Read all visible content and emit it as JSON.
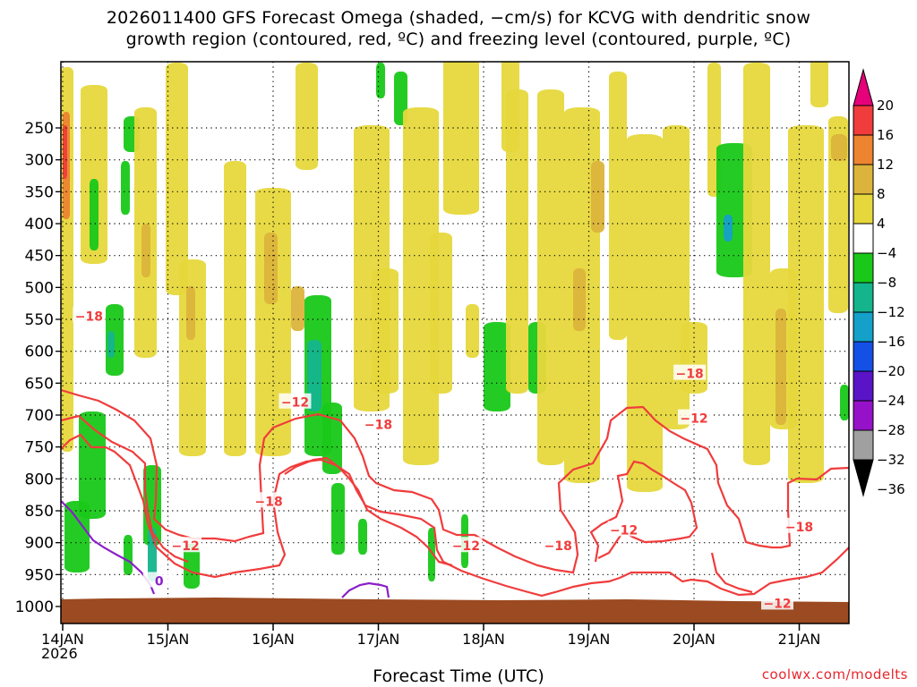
{
  "title_line1": "2026011400 GFS Forecast Omega (shaded, −cm/s) for KCVG with dendritic snow",
  "title_line2": "growth region (contoured, red, ºC) and freezing level (contoured, purple, ºC)",
  "xlabel": "Forecast Time (UTC)",
  "year_label": "2026",
  "credit": "coolwx.com/modelts",
  "colors": {
    "ground": "#9c4a21",
    "contour_red": "#f03c3c",
    "contour_purple": "#8a1fc8",
    "grid": "#000000"
  },
  "chart_data": {
    "type": "heatmap",
    "y_ticks": [
      250,
      300,
      350,
      400,
      450,
      500,
      550,
      600,
      650,
      700,
      750,
      800,
      850,
      900,
      950,
      1000
    ],
    "x_ticks": [
      "14JAN",
      "15JAN",
      "16JAN",
      "17JAN",
      "18JAN",
      "19JAN",
      "20JAN",
      "21JAN"
    ],
    "colorbar": {
      "labels": [
        "20",
        "16",
        "12",
        "8",
        "4",
        "−4",
        "−8",
        "−12",
        "−16",
        "−20",
        "−24",
        "−28",
        "−32",
        "−36"
      ],
      "colors": [
        "#e6007a",
        "#f03c3c",
        "#ec8430",
        "#dcb43c",
        "#e6d83c",
        "#ffffff",
        "#19c819",
        "#14b48c",
        "#14a0c8",
        "#1450e6",
        "#5a14c8",
        "#9612c8",
        "#a0a0a0",
        "#000000"
      ]
    },
    "contour_labels": [
      {
        "text": "−18",
        "x": "14JAN 06Z",
        "p": 545
      },
      {
        "text": "−12",
        "x": "15JAN 04Z",
        "p": 905
      },
      {
        "text": "−18",
        "x": "15JAN 23Z",
        "p": 835
      },
      {
        "text": "−12",
        "x": "16JAN 05Z",
        "p": 680
      },
      {
        "text": "−18",
        "x": "17JAN 00Z",
        "p": 715
      },
      {
        "text": "−12",
        "x": "17JAN 20Z",
        "p": 905
      },
      {
        "text": "−18",
        "x": "18JAN 17Z",
        "p": 905
      },
      {
        "text": "−12",
        "x": "19JAN 08Z",
        "p": 880
      },
      {
        "text": "−18",
        "x": "19JAN 23Z",
        "p": 635
      },
      {
        "text": "−12",
        "x": "20JAN 00Z",
        "p": 705
      },
      {
        "text": "−18",
        "x": "21JAN 00Z",
        "p": 875
      },
      {
        "text": "−12",
        "x": "20JAN 19Z",
        "p": 995
      },
      {
        "text": "0",
        "x": "14JAN 22Z",
        "p": 960
      }
    ]
  }
}
